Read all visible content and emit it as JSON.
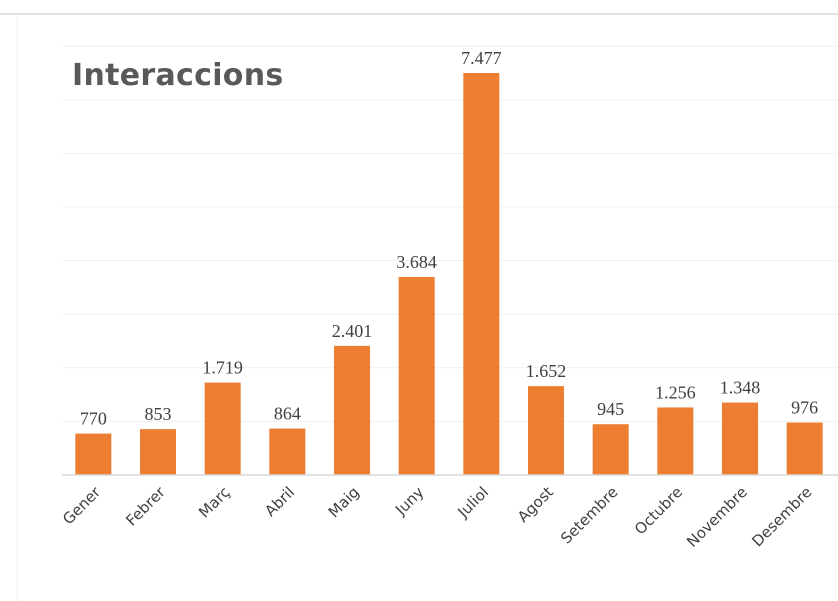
{
  "chart_data": {
    "type": "bar",
    "title": "Interaccions",
    "categories": [
      "Gener",
      "Febrer",
      "Març",
      "Abril",
      "Maig",
      "Juny",
      "Juliol",
      "Agost",
      "Setembre",
      "Octubre",
      "Novembre",
      "Desembre"
    ],
    "values": [
      770,
      853,
      1719,
      864,
      2401,
      3684,
      7477,
      1652,
      945,
      1256,
      1348,
      976
    ],
    "value_labels": [
      "770",
      "853",
      "1.719",
      "864",
      "2.401",
      "3.684",
      "7.477",
      "1.652",
      "945",
      "1.256",
      "1.348",
      "976"
    ],
    "xlabel": "",
    "ylabel": "",
    "ylim": [
      0,
      8000
    ],
    "grid": true,
    "legend": "none",
    "bar_color": "#ED7D31",
    "grid_color": "#F0F0F0",
    "axis_color": "#D9D9D9"
  }
}
